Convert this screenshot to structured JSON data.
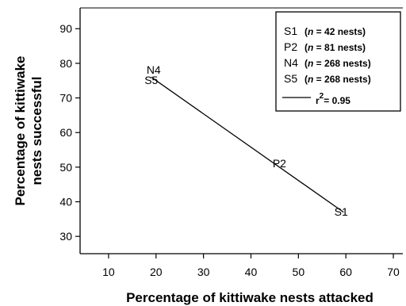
{
  "chart_data": {
    "type": "line",
    "xlabel": "Percentage of kittiwake nests attacked",
    "ylabel": "Percentage of kittiwake nests successful",
    "ylabel_lines": [
      "Percentage of kittiwake",
      "nests successful"
    ],
    "xlim": [
      4,
      72
    ],
    "ylim": [
      25,
      96
    ],
    "x_ticks": [
      10,
      20,
      30,
      40,
      50,
      60,
      70
    ],
    "y_ticks": [
      30,
      40,
      50,
      60,
      70,
      80,
      90
    ],
    "grid": false,
    "legend_position": "top-right",
    "fit_line": {
      "x": [
        19,
        59.5
      ],
      "y": [
        76,
        37
      ],
      "legend_label": "r",
      "legend_exponent": "2",
      "legend_value": "= 0.95"
    },
    "points": [
      {
        "label": "N4",
        "x": 19.5,
        "y": 77
      },
      {
        "label": "S5",
        "x": 19,
        "y": 74
      },
      {
        "label": "P2",
        "x": 46,
        "y": 50
      },
      {
        "label": "S1",
        "x": 59,
        "y": 36
      }
    ],
    "legend": [
      {
        "code": "S1",
        "n_label": "n",
        "n_text": " = 42 nests)"
      },
      {
        "code": "P2",
        "n_label": "n",
        "n_text": " = 81 nests)"
      },
      {
        "code": "N4",
        "n_label": "n",
        "n_text": " = 268 nests)"
      },
      {
        "code": "S5",
        "n_label": "n",
        "n_text": " = 268 nests)"
      }
    ]
  }
}
